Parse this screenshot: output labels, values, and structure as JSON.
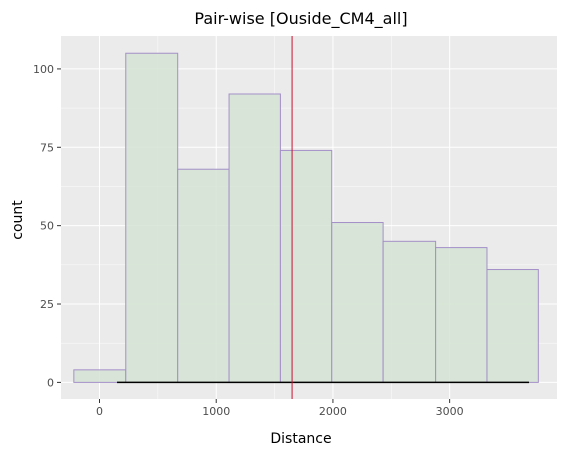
{
  "chart_data": {
    "type": "bar",
    "title": "Pair-wise [Ouside_CM4_all]",
    "xlabel": "Distance",
    "ylabel": "count",
    "xlim": [
      -330,
      3920
    ],
    "ylim": [
      -5.3,
      110.5
    ],
    "x_ticks": [
      0,
      1000,
      2000,
      3000
    ],
    "x_tick_labels": [
      "0",
      "1000",
      "2000",
      "3000"
    ],
    "y_ticks": [
      0,
      25,
      50,
      75,
      100
    ],
    "y_tick_labels": [
      "0",
      "25",
      "50",
      "75",
      "100"
    ],
    "bins": [
      {
        "x0": -220,
        "x1": 225,
        "count": 4
      },
      {
        "x0": 225,
        "x1": 670,
        "count": 105
      },
      {
        "x0": 670,
        "x1": 1110,
        "count": 68
      },
      {
        "x0": 1110,
        "x1": 1550,
        "count": 92
      },
      {
        "x0": 1550,
        "x1": 1990,
        "count": 74
      },
      {
        "x0": 1990,
        "x1": 2430,
        "count": 51
      },
      {
        "x0": 2430,
        "x1": 2880,
        "count": 45
      },
      {
        "x0": 2880,
        "x1": 3320,
        "count": 43
      },
      {
        "x0": 3320,
        "x1": 3760,
        "count": 36
      }
    ],
    "vline": {
      "x": 1650
    },
    "rug_segment": {
      "x0": 150,
      "x1": 3680,
      "y": 0
    },
    "grid": true,
    "colors": {
      "panel_bg": "#ebebeb",
      "grid_major": "#ffffff",
      "bar_fill": "#d4e3d4",
      "bar_edge": "#a48fc8",
      "vline": "#cc1133",
      "rug": "#000000"
    }
  }
}
